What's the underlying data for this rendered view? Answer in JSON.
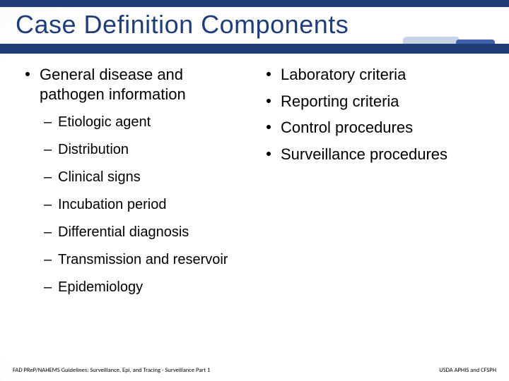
{
  "title": "Case Definition Components",
  "colors": {
    "brand_blue": "#1f3e79",
    "accent_light": "#c7d3e6",
    "accent_mid": "#3f5fa8",
    "text": "#000000",
    "background": "#ffffff"
  },
  "typography": {
    "title_fontsize_pt": 36,
    "body_fontsize_pt": 22,
    "sub_fontsize_pt": 20,
    "footer_fontsize_pt": 8.5,
    "font_family": "Verdana"
  },
  "left_column": {
    "items": [
      {
        "text": "General disease and pathogen information",
        "sub": [
          "Etiologic agent",
          "Distribution",
          "Clinical signs",
          "Incubation period",
          "Differential diagnosis",
          "Transmission and reservoir",
          "Epidemiology"
        ]
      }
    ]
  },
  "right_column": {
    "items": [
      {
        "text": "Laboratory criteria"
      },
      {
        "text": "Reporting criteria"
      },
      {
        "text": "Control procedures"
      },
      {
        "text": "Surveillance procedures"
      }
    ]
  },
  "footer": {
    "left": "FAD PReP/NAHEMS Guidelines: Surveillance, Epi, and Tracing - Surveillance Part 1",
    "right": "USDA APHIS and CFSPH"
  }
}
